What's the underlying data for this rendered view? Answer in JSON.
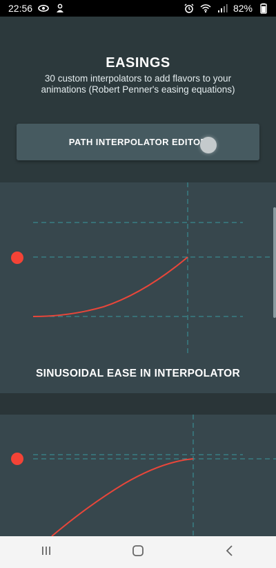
{
  "status_bar": {
    "time": "22:56",
    "battery": "82%",
    "left_icons": [
      "eye-icon",
      "notification-icon"
    ],
    "right_icons": [
      "alarm-icon",
      "wifi-icon",
      "signal-icon",
      "battery-icon"
    ]
  },
  "header": {
    "title": "EASINGS",
    "subtitle": "30 custom interpolators to add flavors to your animations (Robert Penner's easing equations)",
    "button_label": "PATH INTERPOLATOR EDITOR"
  },
  "cards": [
    {
      "label": "SINUSOIDAL EASE IN INTERPOLATOR"
    },
    {
      "label": ""
    }
  ],
  "colors": {
    "background": "#2a3538",
    "header": "#2c393c",
    "card": "#37474d",
    "curve": "#e8463a",
    "guide": "#3a9aa0",
    "button": "#465a60"
  },
  "nav_bar": {
    "icons": [
      "recent-apps-icon",
      "home-icon",
      "back-icon"
    ]
  }
}
